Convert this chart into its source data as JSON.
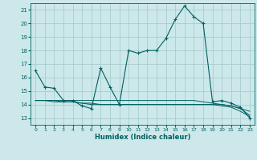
{
  "xlabel": "Humidex (Indice chaleur)",
  "background_color": "#cce8ea",
  "grid_color": "#aacccc",
  "line_color": "#006060",
  "xlim": [
    -0.5,
    23.5
  ],
  "ylim": [
    12.5,
    21.5
  ],
  "yticks": [
    13,
    14,
    15,
    16,
    17,
    18,
    19,
    20,
    21
  ],
  "xticks": [
    0,
    1,
    2,
    3,
    4,
    5,
    6,
    7,
    8,
    9,
    10,
    11,
    12,
    13,
    14,
    15,
    16,
    17,
    18,
    19,
    20,
    21,
    22,
    23
  ],
  "series": [
    {
      "x": [
        0,
        1,
        2,
        3,
        4,
        5,
        6,
        7,
        8,
        9,
        10,
        11,
        12,
        13,
        14,
        15,
        16,
        17,
        18,
        19,
        20,
        21,
        22,
        23
      ],
      "y": [
        16.5,
        15.3,
        15.2,
        14.3,
        14.3,
        13.9,
        13.7,
        16.7,
        15.3,
        14.0,
        18.0,
        17.8,
        18.0,
        18.0,
        18.9,
        20.3,
        21.3,
        20.5,
        20.0,
        14.2,
        14.3,
        14.1,
        13.8,
        13.0
      ],
      "marker": true
    },
    {
      "x": [
        0,
        1,
        2,
        3,
        4,
        5,
        6,
        7,
        8,
        9,
        10,
        11,
        12,
        13,
        14,
        15,
        16,
        17,
        18,
        19,
        20,
        21,
        22,
        23
      ],
      "y": [
        14.3,
        14.3,
        14.3,
        14.3,
        14.3,
        14.3,
        14.3,
        14.3,
        14.3,
        14.3,
        14.3,
        14.3,
        14.3,
        14.3,
        14.3,
        14.3,
        14.3,
        14.3,
        14.2,
        14.1,
        14.0,
        13.9,
        13.7,
        13.5
      ],
      "marker": false
    },
    {
      "x": [
        0,
        1,
        2,
        3,
        4,
        5,
        6,
        7,
        8,
        9,
        10,
        11,
        12,
        13,
        14,
        15,
        16,
        17,
        18,
        19,
        20,
        21,
        22,
        23
      ],
      "y": [
        14.3,
        14.3,
        14.2,
        14.2,
        14.2,
        14.1,
        14.1,
        14.0,
        14.0,
        14.0,
        14.0,
        14.0,
        14.0,
        14.0,
        14.0,
        14.0,
        14.0,
        14.0,
        14.0,
        14.0,
        13.9,
        13.8,
        13.5,
        13.1
      ],
      "marker": false
    },
    {
      "x": [
        0,
        1,
        2,
        3,
        4,
        5,
        6,
        7,
        8,
        9,
        10,
        11,
        12,
        13,
        14,
        15,
        16,
        17,
        18,
        19,
        20,
        21,
        22,
        23
      ],
      "y": [
        14.3,
        14.3,
        14.3,
        14.2,
        14.2,
        14.1,
        14.0,
        14.0,
        14.0,
        14.0,
        14.0,
        14.0,
        14.0,
        14.0,
        14.0,
        14.0,
        14.0,
        14.0,
        14.0,
        14.0,
        14.0,
        13.9,
        13.7,
        13.2
      ],
      "marker": false
    }
  ]
}
